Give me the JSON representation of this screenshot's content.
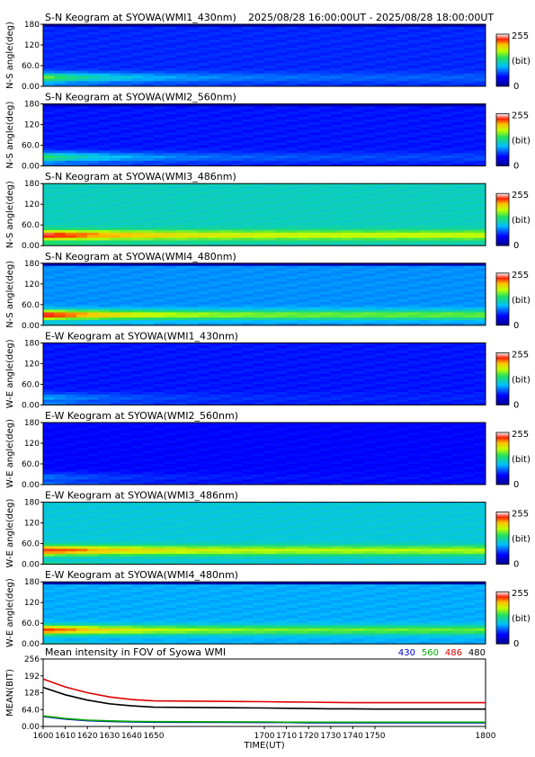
{
  "header": {
    "time_range": "2025/08/28 16:00:00UT - 2025/08/28 18:00:00UT"
  },
  "colorbar": {
    "max_label": "255",
    "unit_label": "(bit)",
    "min_label": "0"
  },
  "chart_data": [
    {
      "type": "heatmap",
      "title": "S-N Keogram at SYOWA(WMI1_430nm)",
      "ylabel": "N-S angle(deg)",
      "yticks": [
        "180",
        "120",
        "60.0",
        "0.00"
      ],
      "ylim": [
        0,
        180
      ],
      "xlim": [
        1600,
        1800
      ],
      "zlim": [
        0,
        255
      ],
      "profile": {
        "base": 0.22,
        "top_dark": true,
        "near_horizon_peak": 0.6,
        "band_deg": 25,
        "band_decay": 0.15
      }
    },
    {
      "type": "heatmap",
      "title": "S-N Keogram at SYOWA(WMI2_560nm)",
      "ylabel": "N-S angle(deg)",
      "yticks": [
        "180",
        "120",
        "60.0",
        "0.00"
      ],
      "ylim": [
        0,
        180
      ],
      "xlim": [
        1600,
        1800
      ],
      "zlim": [
        0,
        255
      ],
      "profile": {
        "base": 0.2,
        "top_dark": true,
        "near_horizon_peak": 0.55,
        "band_deg": 25,
        "band_decay": 0.15
      }
    },
    {
      "type": "heatmap",
      "title": "S-N Keogram at SYOWA(WMI3_486nm)",
      "ylabel": "N-S angle(deg)",
      "yticks": [
        "180",
        "120",
        "60.0",
        "0.00"
      ],
      "ylim": [
        0,
        180
      ],
      "xlim": [
        1600,
        1800
      ],
      "zlim": [
        0,
        255
      ],
      "profile": {
        "base": 0.45,
        "top_dark": false,
        "near_horizon_peak": 0.95,
        "band_deg": 30,
        "band_decay": 0.5
      }
    },
    {
      "type": "heatmap",
      "title": "S-N Keogram at SYOWA(WMI4_480nm)",
      "ylabel": "N-S angle(deg)",
      "yticks": [
        "180",
        "120",
        "60.0",
        "0.00"
      ],
      "ylim": [
        0,
        180
      ],
      "xlim": [
        1600,
        1800
      ],
      "zlim": [
        0,
        255
      ],
      "profile": {
        "base": 0.33,
        "top_dark": true,
        "near_horizon_peak": 0.95,
        "band_deg": 30,
        "band_decay": 0.45
      }
    },
    {
      "type": "heatmap",
      "title": "E-W Keogram at SYOWA(WMI1_430nm)",
      "ylabel": "W-E angle(deg)",
      "yticks": [
        "180",
        "120",
        "60.0",
        "0.00"
      ],
      "ylim": [
        0,
        180
      ],
      "xlim": [
        1600,
        1800
      ],
      "zlim": [
        0,
        255
      ],
      "profile": {
        "base": 0.2,
        "top_dark": false,
        "near_horizon_peak": 0.35,
        "band_deg": 20,
        "band_decay": 0.1
      }
    },
    {
      "type": "heatmap",
      "title": "E-W Keogram at SYOWA(WMI2_560nm)",
      "ylabel": "W-E angle(deg)",
      "yticks": [
        "180",
        "120",
        "60.0",
        "0.00"
      ],
      "ylim": [
        0,
        180
      ],
      "xlim": [
        1600,
        1800
      ],
      "zlim": [
        0,
        255
      ],
      "profile": {
        "base": 0.18,
        "top_dark": false,
        "near_horizon_peak": 0.3,
        "band_deg": 20,
        "band_decay": 0.1
      }
    },
    {
      "type": "heatmap",
      "title": "E-W Keogram at SYOWA(WMI3_486nm)",
      "ylabel": "W-E angle(deg)",
      "yticks": [
        "180",
        "120",
        "60.0",
        "0.00"
      ],
      "ylim": [
        0,
        180
      ],
      "xlim": [
        1600,
        1800
      ],
      "zlim": [
        0,
        255
      ],
      "profile": {
        "base": 0.42,
        "top_dark": false,
        "near_horizon_peak": 0.92,
        "band_deg": 40,
        "band_decay": 0.5
      }
    },
    {
      "type": "heatmap",
      "title": "E-W Keogram at SYOWA(WMI4_480nm)",
      "ylabel": "W-E angle(deg)",
      "yticks": [
        "180",
        "120",
        "60.0",
        "0.00"
      ],
      "ylim": [
        0,
        180
      ],
      "xlim": [
        1600,
        1800
      ],
      "zlim": [
        0,
        255
      ],
      "profile": {
        "base": 0.36,
        "top_dark": true,
        "near_horizon_peak": 0.9,
        "band_deg": 40,
        "band_decay": 0.45
      }
    },
    {
      "type": "line",
      "title": "Mean intensity in FOV of Syowa WMI",
      "xlabel": "TIME(UT)",
      "ylabel": "MEAN(BIT)",
      "xlim": [
        1600,
        1800
      ],
      "ylim": [
        0,
        256
      ],
      "xticks": [
        "1600",
        "1610",
        "1620",
        "1630",
        "1640",
        "1650",
        "1700",
        "1710",
        "1720",
        "1730",
        "1740",
        "1750",
        "1800"
      ],
      "yticks": [
        "256",
        "192",
        "128",
        "64.0",
        "0.00"
      ],
      "x": [
        1600,
        1610,
        1620,
        1630,
        1640,
        1650,
        1700,
        1710,
        1720,
        1730,
        1740,
        1750,
        1800
      ],
      "series": [
        {
          "name": "430",
          "color": "#0000cc",
          "values": [
            38,
            28,
            22,
            19,
            17,
            16,
            15,
            15,
            14,
            14,
            14,
            14,
            14
          ]
        },
        {
          "name": "560",
          "color": "#00aa00",
          "values": [
            40,
            30,
            24,
            21,
            19,
            18,
            17,
            16,
            16,
            16,
            16,
            16,
            16
          ]
        },
        {
          "name": "486",
          "color": "#dd0000",
          "values": [
            180,
            150,
            128,
            112,
            102,
            97,
            94,
            93,
            92,
            91,
            90,
            90,
            90
          ]
        },
        {
          "name": "480",
          "color": "#000000",
          "values": [
            148,
            120,
            100,
            86,
            78,
            73,
            70,
            69,
            68,
            67,
            67,
            66,
            66
          ]
        }
      ]
    }
  ]
}
